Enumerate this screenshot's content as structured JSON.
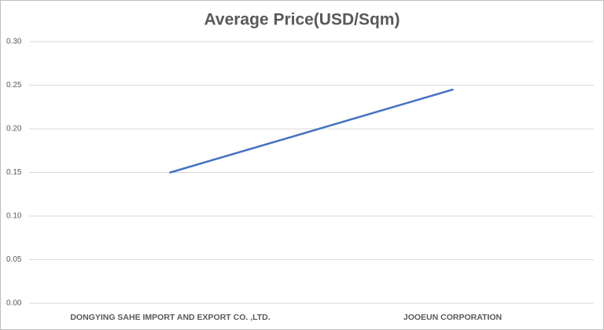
{
  "chart_data": {
    "type": "line",
    "title": "Average Price(USD/Sqm)",
    "categories": [
      "DONGYING SAHE IMPORT AND EXPORT CO. ,LTD.",
      "JOOEUN CORPORATION"
    ],
    "series": [
      {
        "color": "#4472c4",
        "values": [
          0.15,
          0.245
        ]
      }
    ],
    "ylim": [
      0,
      0.3
    ],
    "yticks": [
      {
        "value": 0,
        "label": "0.00"
      },
      0.05,
      {
        "value": 0.1,
        "label": "0.10"
      },
      0.15,
      {
        "value": 0.2,
        "label": "0.20"
      },
      0.25,
      {
        "value": 0.3,
        "label": "0.30"
      }
    ],
    "grid": true
  }
}
